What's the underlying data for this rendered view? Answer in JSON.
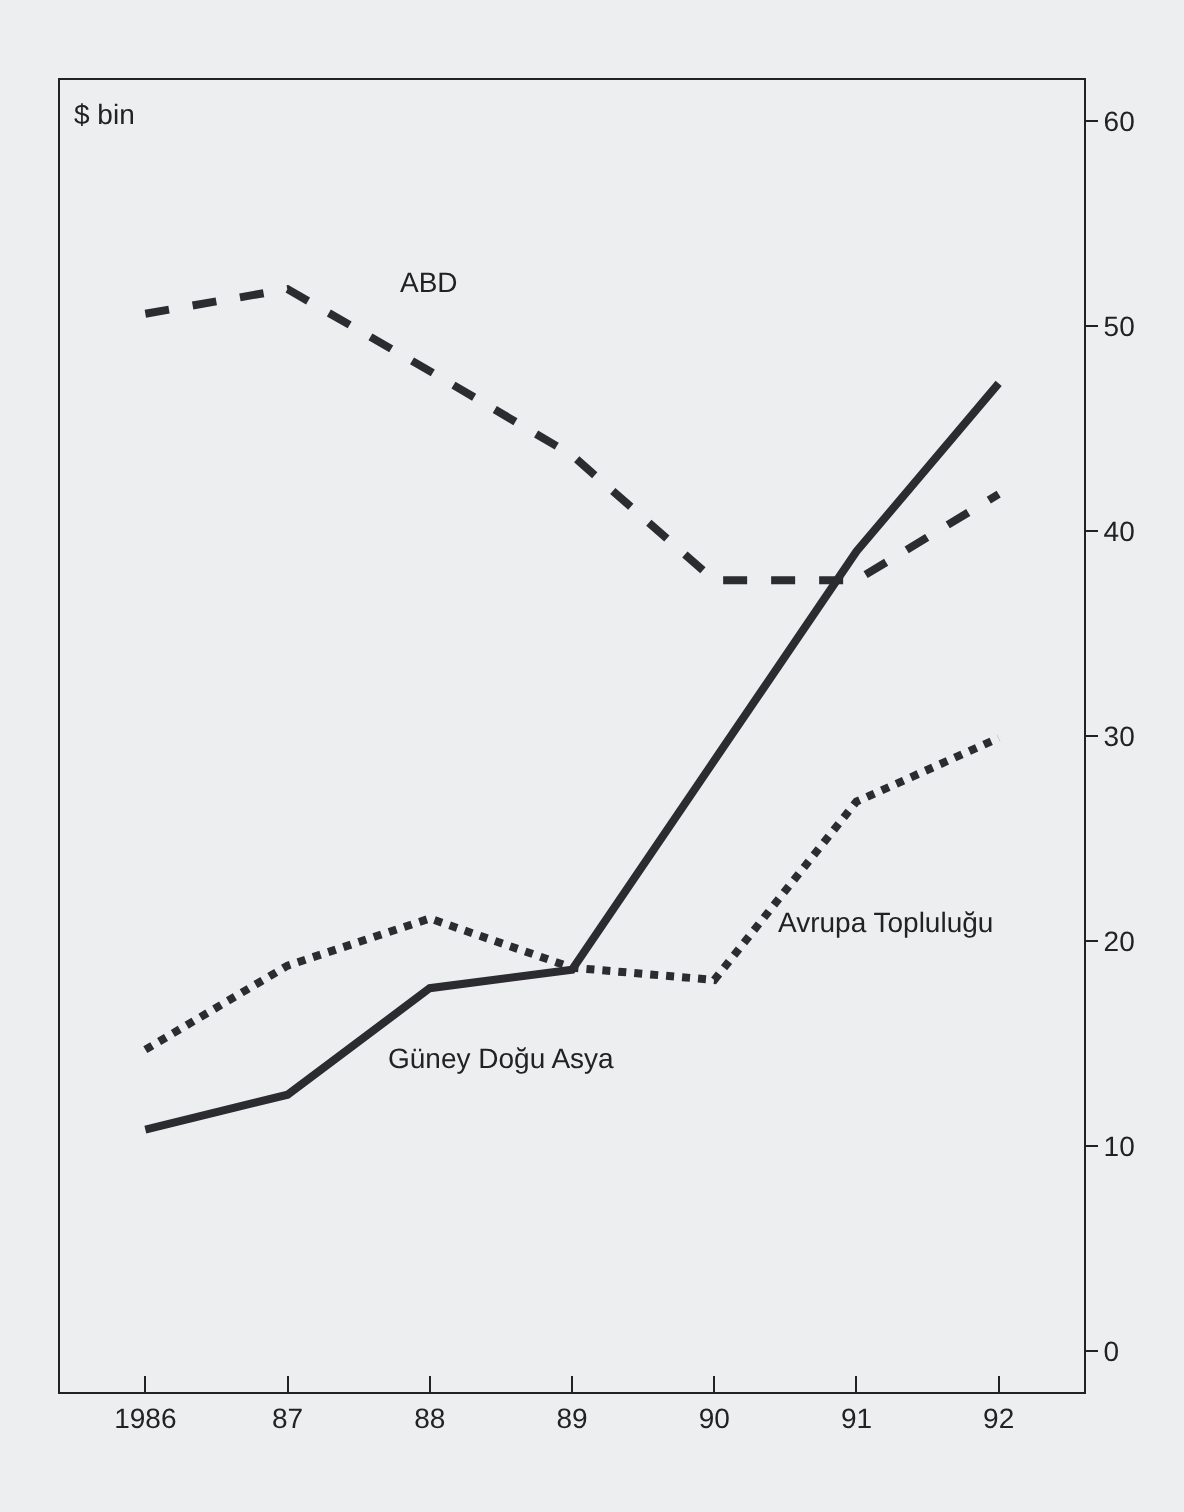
{
  "chart_data": {
    "type": "line",
    "ylabel": "$ bin",
    "categories": [
      "1986",
      "87",
      "88",
      "89",
      "90",
      "91",
      "92"
    ],
    "series": [
      {
        "name": "ABD",
        "color": "#2b2b30",
        "line_style": "dashed",
        "values": [
          50.6,
          51.8,
          47.8,
          43.7,
          37.6,
          37.6,
          41.8
        ]
      },
      {
        "name": "Güney Doğu Asya",
        "color": "#2b2b30",
        "line_style": "solid",
        "values": [
          10.8,
          12.5,
          17.7,
          18.6,
          28.8,
          39,
          47.2
        ]
      },
      {
        "name": "Avrupa Topluluğu",
        "color": "#2b2b30",
        "line_style": "dotted",
        "values": [
          14.7,
          18.8,
          21.1,
          18.7,
          18.1,
          26.8,
          29.9
        ]
      }
    ],
    "ylim": [
      -2,
      62
    ],
    "yticks": [
      0,
      10,
      20,
      30,
      40,
      50,
      60
    ],
    "grid": false,
    "legend": false,
    "marker": "none"
  }
}
